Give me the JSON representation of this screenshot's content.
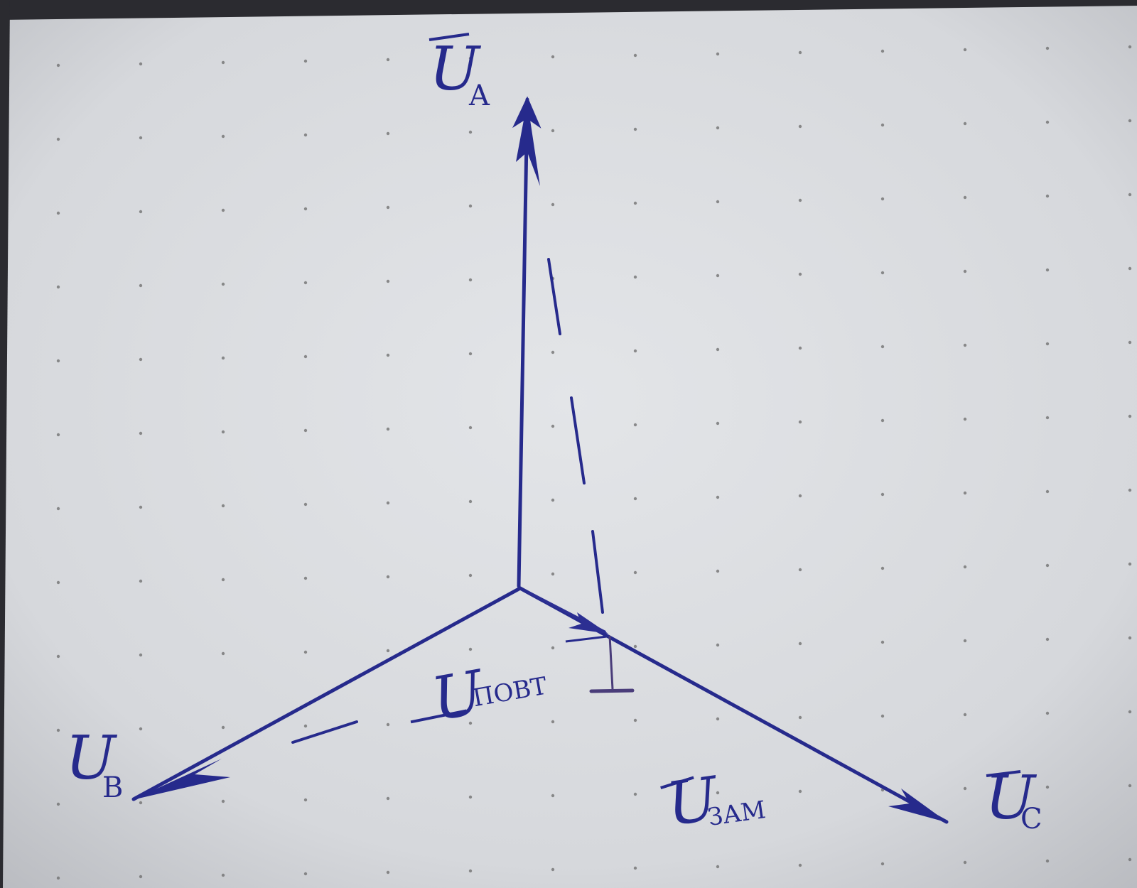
{
  "colors": {
    "paper": "#d9dbdf",
    "ink": "#262a8c",
    "dot": "#6b6b6b"
  },
  "labels": {
    "ua": {
      "main": "U",
      "sub": "A"
    },
    "ub": {
      "main": "U",
      "sub": "B"
    },
    "uc": {
      "main": "U",
      "sub": "C"
    },
    "upovt": {
      "main": "U",
      "sub": "ПОВТ"
    },
    "uzam": {
      "main": "U",
      "sub": "ЗАМ"
    }
  }
}
